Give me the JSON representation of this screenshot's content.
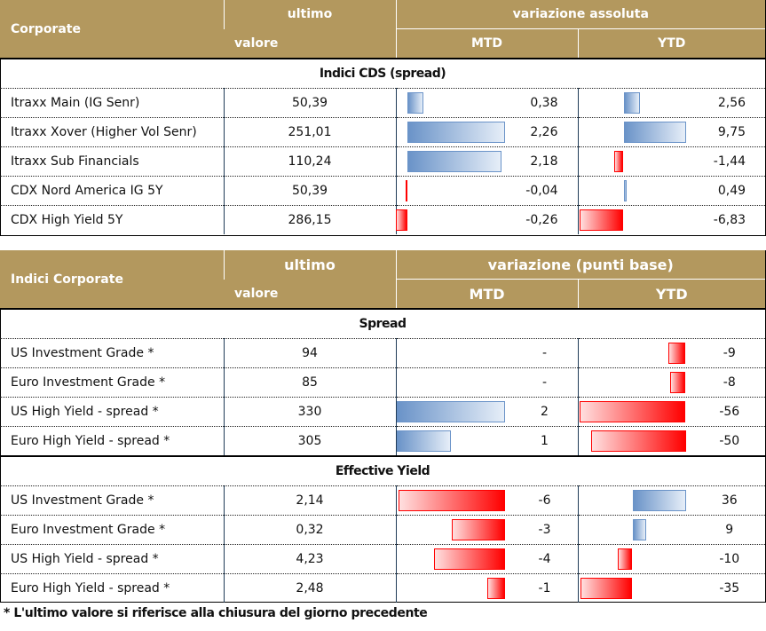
{
  "table1": {
    "header": {
      "col1": "Corporate",
      "col2a": "ultimo",
      "col2b": "valore",
      "group": "variazione assoluta",
      "mtd": "MTD",
      "ytd": "YTD"
    },
    "sections": [
      {
        "title": "Indici CDS (spread)",
        "rows": [
          {
            "name": "Itraxx Main (IG Senr)",
            "value": "50,39",
            "mtd": "0,38",
            "mtd_num": 0.38,
            "ytd": "2,56",
            "ytd_num": 2.56
          },
          {
            "name": "Itraxx Xover (Higher Vol Senr)",
            "value": "251,01",
            "mtd": "2,26",
            "mtd_num": 2.26,
            "ytd": "9,75",
            "ytd_num": 9.75
          },
          {
            "name": "Itraxx Sub Financials",
            "value": "110,24",
            "mtd": "2,18",
            "mtd_num": 2.18,
            "ytd": "-1,44",
            "ytd_num": -1.44
          },
          {
            "name": "CDX Nord America IG 5Y",
            "value": "50,39",
            "mtd": "-0,04",
            "mtd_num": -0.04,
            "ytd": "0,49",
            "ytd_num": 0.49
          },
          {
            "name": "CDX High Yield 5Y",
            "value": "286,15",
            "mtd": "-0,26",
            "mtd_num": -0.26,
            "ytd": "-6,83",
            "ytd_num": -6.83
          }
        ]
      }
    ]
  },
  "table2": {
    "header": {
      "col1": "Indici Corporate",
      "col2a": "ultimo",
      "col2b": "valore",
      "group": "variazione (punti base)",
      "mtd": "MTD",
      "ytd": "YTD"
    },
    "sections": [
      {
        "title": "Spread",
        "rows": [
          {
            "name": "US Investment Grade *",
            "value": "94",
            "mtd": "-",
            "mtd_num": 0,
            "ytd": "-9",
            "ytd_num": -9
          },
          {
            "name": "Euro Investment Grade *",
            "value": "85",
            "mtd": "-",
            "mtd_num": 0,
            "ytd": "-8",
            "ytd_num": -8
          },
          {
            "name": "US High Yield  - spread *",
            "value": "330",
            "mtd": "2",
            "mtd_num": 2,
            "ytd": "-56",
            "ytd_num": -56
          },
          {
            "name": "Euro High Yield  - spread *",
            "value": "305",
            "mtd": "1",
            "mtd_num": 1,
            "ytd": "-50",
            "ytd_num": -50
          }
        ]
      },
      {
        "title": "Effective Yield",
        "rows": [
          {
            "name": "US Investment Grade *",
            "value": "2,14",
            "mtd": "-6",
            "mtd_num": -6,
            "ytd": "36",
            "ytd_num": 36
          },
          {
            "name": "Euro Investment Grade *",
            "value": "0,32",
            "mtd": "-3",
            "mtd_num": -3,
            "ytd": "9",
            "ytd_num": 9
          },
          {
            "name": "US High Yield  - spread *",
            "value": "4,23",
            "mtd": "-4",
            "mtd_num": -4,
            "ytd": "-10",
            "ytd_num": -10
          },
          {
            "name": "Euro High Yield  - spread *",
            "value": "2,48",
            "mtd": "-1",
            "mtd_num": -1,
            "ytd": "-35",
            "ytd_num": -35
          }
        ]
      }
    ]
  },
  "footnote": "* L'ultimo valore si riferisce alla chiusura del giorno precedente"
}
